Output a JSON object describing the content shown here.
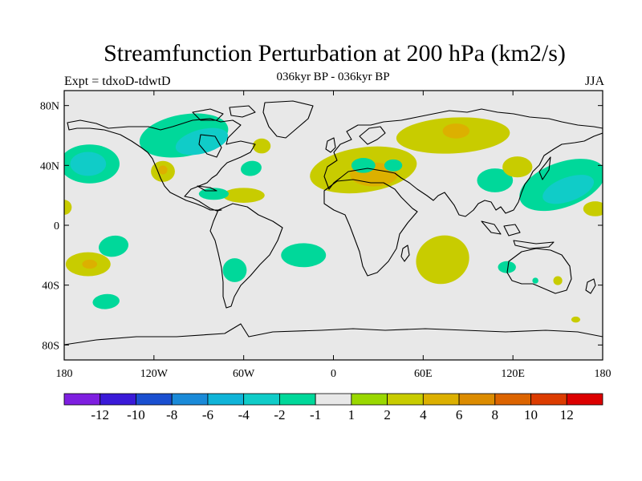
{
  "chart_data": {
    "type": "heatmap",
    "title": "Streamfunction Perturbation at 200 hPa (km2/s)",
    "subtitle": "036kyr BP - 036kyr BP",
    "left_label": "Expt = tdxoD-tdwtD",
    "right_label": "JJA",
    "projection": "cylindrical equidistant",
    "xlim": [
      -180,
      180
    ],
    "ylim": [
      -90,
      90
    ],
    "x_ticks": [
      {
        "value": -180,
        "label": "180"
      },
      {
        "value": -120,
        "label": "120W"
      },
      {
        "value": -60,
        "label": "60W"
      },
      {
        "value": 0,
        "label": "0"
      },
      {
        "value": 60,
        "label": "60E"
      },
      {
        "value": 120,
        "label": "120E"
      },
      {
        "value": 180,
        "label": "180"
      }
    ],
    "y_ticks": [
      {
        "value": 80,
        "label": "80N"
      },
      {
        "value": 40,
        "label": "40N"
      },
      {
        "value": 0,
        "label": "0"
      },
      {
        "value": -40,
        "label": "40S"
      },
      {
        "value": -80,
        "label": "80S"
      }
    ],
    "background_color": "#e8e8e8",
    "colorbar": {
      "colors": [
        "#7e1fe0",
        "#3a1ad8",
        "#1a4fd0",
        "#1a8ad8",
        "#10b4d8",
        "#10ccc8",
        "#00d89a",
        "#e8e8e8",
        "#9ad800",
        "#c8cc00",
        "#dcb000",
        "#dc8c00",
        "#dc6400",
        "#dc3c00",
        "#dc0000"
      ],
      "labels": [
        "-12",
        "-10",
        "-8",
        "-6",
        "-4",
        "-2",
        "-1",
        "1",
        "2",
        "4",
        "6",
        "8",
        "10",
        "12"
      ]
    },
    "regions": [
      {
        "level": "-2",
        "lon": -100,
        "lat": 60,
        "rx": 30,
        "ry": 14,
        "rot": -10
      },
      {
        "level": "-4",
        "lon": -88,
        "lat": 56,
        "rx": 18,
        "ry": 8,
        "rot": -15
      },
      {
        "level": "-2",
        "lon": -163,
        "lat": 41,
        "rx": 20,
        "ry": 13,
        "rot": 0
      },
      {
        "level": "-4",
        "lon": -164,
        "lat": 41,
        "rx": 12,
        "ry": 8,
        "rot": 0
      },
      {
        "level": "2",
        "lon": -114,
        "lat": 36,
        "rx": 8,
        "ry": 7,
        "rot": 0
      },
      {
        "level": "4",
        "lon": -114,
        "lat": 37,
        "rx": 3,
        "ry": 3,
        "rot": 0
      },
      {
        "level": "2",
        "lon": -48,
        "lat": 53,
        "rx": 6,
        "ry": 5,
        "rot": 0
      },
      {
        "level": "-2",
        "lon": -55,
        "lat": 38,
        "rx": 7,
        "ry": 5,
        "rot": -10
      },
      {
        "level": "2",
        "lon": -60,
        "lat": 20,
        "rx": 14,
        "ry": 5,
        "rot": 0
      },
      {
        "level": "-2",
        "lon": -80,
        "lat": 21,
        "rx": 10,
        "ry": 4,
        "rot": 0
      },
      {
        "level": "2",
        "lon": 20,
        "lat": 37,
        "rx": 36,
        "ry": 15,
        "rot": -8
      },
      {
        "level": "4",
        "lon": 27,
        "lat": 34,
        "rx": 16,
        "ry": 8,
        "rot": 0
      },
      {
        "level": "-2",
        "lon": 20,
        "lat": 40,
        "rx": 8,
        "ry": 5,
        "rot": 0
      },
      {
        "level": "-2",
        "lon": 40,
        "lat": 40,
        "rx": 6,
        "ry": 4,
        "rot": 0
      },
      {
        "level": "2",
        "lon": 80,
        "lat": 60,
        "rx": 38,
        "ry": 12,
        "rot": -3
      },
      {
        "level": "4",
        "lon": 82,
        "lat": 63,
        "rx": 9,
        "ry": 5,
        "rot": 0
      },
      {
        "level": "-2",
        "lon": 108,
        "lat": 30,
        "rx": 12,
        "ry": 8,
        "rot": 0
      },
      {
        "level": "2",
        "lon": 123,
        "lat": 39,
        "rx": 10,
        "ry": 7,
        "rot": 0
      },
      {
        "level": "-2",
        "lon": 153,
        "lat": 27,
        "rx": 30,
        "ry": 15,
        "rot": -20
      },
      {
        "level": "-4",
        "lon": 157,
        "lat": 24,
        "rx": 18,
        "ry": 8,
        "rot": -20
      },
      {
        "level": "2",
        "lon": 175,
        "lat": 11,
        "rx": 8,
        "ry": 5,
        "rot": 0
      },
      {
        "level": "2",
        "lon": -180,
        "lat": 12,
        "rx": 5,
        "ry": 5,
        "rot": 0
      },
      {
        "level": "-2",
        "lon": -147,
        "lat": -14,
        "rx": 10,
        "ry": 7,
        "rot": -10
      },
      {
        "level": "2",
        "lon": -164,
        "lat": -26,
        "rx": 15,
        "ry": 8,
        "rot": 0
      },
      {
        "level": "4",
        "lon": -163,
        "lat": -26,
        "rx": 5,
        "ry": 3,
        "rot": 0
      },
      {
        "level": "-2",
        "lon": -66,
        "lat": -30,
        "rx": 8,
        "ry": 8,
        "rot": 0
      },
      {
        "level": "-2",
        "lon": -152,
        "lat": -51,
        "rx": 9,
        "ry": 5,
        "rot": -5
      },
      {
        "level": "-2",
        "lon": -20,
        "lat": -20,
        "rx": 15,
        "ry": 8,
        "rot": 0
      },
      {
        "level": "2",
        "lon": 73,
        "lat": -23,
        "rx": 18,
        "ry": 16,
        "rot": -20
      },
      {
        "level": "-2",
        "lon": 116,
        "lat": -28,
        "rx": 6,
        "ry": 4,
        "rot": 0
      },
      {
        "level": "-2",
        "lon": 135,
        "lat": -37,
        "rx": 2,
        "ry": 2,
        "rot": 0
      },
      {
        "level": "2",
        "lon": 150,
        "lat": -37,
        "rx": 3,
        "ry": 3,
        "rot": 0
      },
      {
        "level": "2",
        "lon": 162,
        "lat": -63,
        "rx": 3,
        "ry": 2,
        "rot": 0
      }
    ]
  }
}
